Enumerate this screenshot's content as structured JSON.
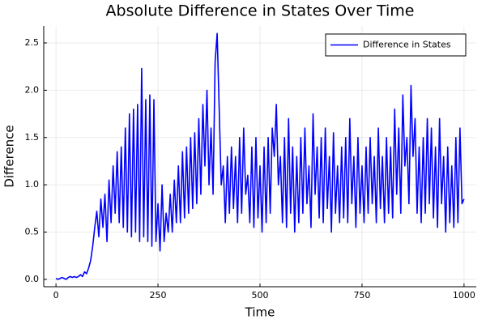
{
  "chart_data": {
    "type": "line",
    "title": "Absolute Difference in States Over Time",
    "xlabel": "Time",
    "ylabel": "Difference",
    "x": [
      0,
      5,
      10,
      15,
      20,
      25,
      30,
      35,
      40,
      45,
      50,
      55,
      60,
      65,
      70,
      75,
      80,
      85,
      90,
      95,
      100,
      105,
      110,
      115,
      120,
      125,
      130,
      135,
      140,
      145,
      150,
      155,
      160,
      165,
      170,
      175,
      180,
      185,
      190,
      195,
      200,
      205,
      210,
      215,
      220,
      225,
      230,
      235,
      240,
      245,
      250,
      255,
      260,
      265,
      270,
      275,
      280,
      285,
      290,
      295,
      300,
      305,
      310,
      315,
      320,
      325,
      330,
      335,
      340,
      345,
      350,
      355,
      360,
      365,
      370,
      375,
      380,
      385,
      390,
      395,
      400,
      405,
      410,
      415,
      420,
      425,
      430,
      435,
      440,
      445,
      450,
      455,
      460,
      465,
      470,
      475,
      480,
      485,
      490,
      495,
      500,
      505,
      510,
      515,
      520,
      525,
      530,
      535,
      540,
      545,
      550,
      555,
      560,
      565,
      570,
      575,
      580,
      585,
      590,
      595,
      600,
      605,
      610,
      615,
      620,
      625,
      630,
      635,
      640,
      645,
      650,
      655,
      660,
      665,
      670,
      675,
      680,
      685,
      690,
      695,
      700,
      705,
      710,
      715,
      720,
      725,
      730,
      735,
      740,
      745,
      750,
      755,
      760,
      765,
      770,
      775,
      780,
      785,
      790,
      795,
      800,
      805,
      810,
      815,
      820,
      825,
      830,
      835,
      840,
      845,
      850,
      855,
      860,
      865,
      870,
      875,
      880,
      885,
      890,
      895,
      900,
      905,
      910,
      915,
      920,
      925,
      930,
      935,
      940,
      945,
      950,
      955,
      960,
      965,
      970,
      975,
      980,
      985,
      990,
      995,
      1000
    ],
    "series": [
      {
        "name": "Difference in States",
        "color": "#0000ff",
        "values": [
          0.01,
          0.0,
          0.01,
          0.02,
          0.01,
          0.0,
          0.02,
          0.03,
          0.02,
          0.03,
          0.02,
          0.03,
          0.05,
          0.03,
          0.08,
          0.06,
          0.12,
          0.2,
          0.35,
          0.55,
          0.72,
          0.45,
          0.85,
          0.55,
          0.9,
          0.4,
          1.05,
          0.6,
          1.2,
          0.7,
          1.35,
          0.6,
          1.4,
          0.55,
          1.6,
          0.5,
          1.75,
          0.45,
          1.8,
          0.5,
          1.85,
          0.4,
          2.23,
          0.45,
          1.9,
          0.4,
          1.95,
          0.35,
          1.9,
          0.4,
          0.8,
          0.3,
          1.0,
          0.4,
          0.7,
          0.5,
          0.9,
          0.5,
          1.05,
          0.6,
          1.2,
          0.6,
          1.35,
          0.65,
          1.4,
          0.7,
          1.5,
          0.75,
          1.55,
          0.8,
          1.7,
          0.9,
          1.85,
          1.2,
          2.0,
          1.0,
          1.6,
          0.9,
          2.3,
          2.6,
          1.8,
          1.0,
          1.2,
          0.6,
          1.3,
          0.7,
          1.4,
          0.75,
          1.3,
          0.6,
          1.5,
          0.7,
          1.6,
          0.9,
          1.1,
          0.6,
          1.4,
          0.55,
          1.5,
          0.65,
          1.2,
          0.5,
          1.4,
          0.6,
          1.5,
          0.7,
          1.6,
          1.3,
          1.85,
          1.0,
          1.3,
          0.6,
          1.5,
          0.55,
          1.7,
          0.7,
          1.4,
          0.5,
          1.3,
          0.6,
          1.5,
          0.7,
          1.6,
          0.8,
          1.2,
          0.55,
          1.75,
          0.9,
          1.4,
          0.65,
          1.5,
          0.6,
          1.6,
          0.75,
          1.3,
          0.5,
          1.55,
          0.7,
          1.2,
          0.6,
          1.4,
          0.65,
          1.5,
          0.6,
          1.7,
          0.8,
          1.3,
          0.55,
          1.5,
          0.7,
          1.2,
          0.6,
          1.4,
          0.7,
          1.5,
          0.8,
          1.3,
          0.6,
          1.6,
          0.75,
          1.3,
          0.6,
          1.5,
          0.7,
          1.4,
          0.65,
          1.8,
          0.9,
          1.6,
          0.7,
          1.95,
          1.2,
          1.5,
          0.8,
          2.05,
          1.3,
          1.7,
          0.7,
          1.4,
          0.6,
          1.5,
          0.7,
          1.7,
          0.8,
          1.6,
          0.65,
          1.4,
          0.55,
          1.7,
          0.8,
          1.3,
          0.5,
          1.4,
          0.6,
          1.2,
          0.55,
          1.5,
          0.6,
          1.6,
          0.8,
          0.85
        ]
      }
    ],
    "xlim": [
      -30,
      1030
    ],
    "xticks": [
      0,
      250,
      500,
      750,
      1000
    ],
    "ylim": [
      -0.078,
      2.68
    ],
    "yticks": [
      {
        "value": 0,
        "label": "0.0"
      },
      0.5,
      {
        "value": 1,
        "label": "1.0"
      },
      1.5,
      {
        "value": 2,
        "label": "2.0"
      },
      2.5
    ],
    "grid": true,
    "legend": "top-right"
  }
}
